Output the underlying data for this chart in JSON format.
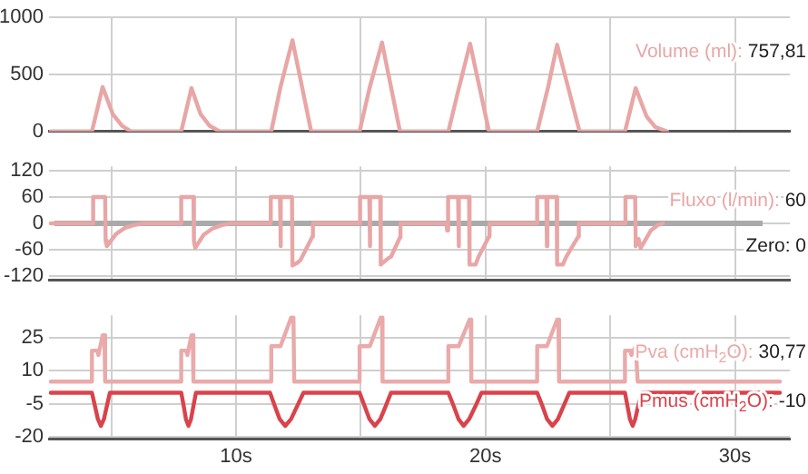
{
  "chart_data": [
    {
      "type": "line",
      "xlim": [
        2.5,
        32.2
      ],
      "xticks": [
        {
          "value": 5,
          "label": null
        },
        {
          "value": 10,
          "label": null
        },
        {
          "value": 15,
          "label": null
        },
        {
          "value": 20,
          "label": null
        },
        {
          "value": 25,
          "label": null
        },
        {
          "value": 30,
          "label": null
        }
      ],
      "ylim": [
        0,
        1000
      ],
      "yticks": [
        0,
        500,
        1000
      ],
      "grid": true,
      "tick_labels": "y",
      "legend": "right",
      "annotations": [
        " 757,81"
      ],
      "series": [
        {
          "name": "Volume (ml):",
          "color": "#e8a6a6",
          "x": [
            2.57,
            4.22,
            4.65,
            5.06,
            5.43,
            5.79,
            7.8,
            8.21,
            8.58,
            8.94,
            9.35,
            11.41,
            11.78,
            12.26,
            13.01,
            14.95,
            15.36,
            15.85,
            16.57,
            18.51,
            18.92,
            19.38,
            20.14,
            22.07,
            22.51,
            22.87,
            23.77,
            25.59,
            26.02,
            26.46,
            26.8,
            27.28
          ],
          "values": [
            0,
            0,
            390,
            150,
            50,
            0,
            0,
            380,
            150,
            50,
            0,
            0,
            390,
            800,
            0,
            0,
            390,
            780,
            0,
            0,
            370,
            770,
            0,
            0,
            390,
            760,
            0,
            0,
            380,
            130,
            40,
            0
          ]
        }
      ]
    },
    {
      "type": "line",
      "xlim": [
        2.5,
        32.2
      ],
      "xticks": [
        {
          "value": 5,
          "label": null
        },
        {
          "value": 10,
          "label": null
        },
        {
          "value": 15,
          "label": null
        },
        {
          "value": 20,
          "label": null
        },
        {
          "value": 25,
          "label": null
        },
        {
          "value": 30,
          "label": null
        }
      ],
      "ylim": [
        -130,
        130
      ],
      "yticks": [
        -120,
        -60,
        0,
        60,
        120
      ],
      "grid": true,
      "tick_labels": "y",
      "legend": "right",
      "annotations": [
        " 60"
      ],
      "ref_lines": [
        {
          "axis": "y",
          "value": 0,
          "label": "Zero: 0",
          "color": "#aaaaaa"
        }
      ],
      "series": [
        {
          "name": "Fluxo (l/min):",
          "color": "#e8a6a6",
          "x": [
            2.57,
            4.27,
            4.27,
            4.75,
            4.77,
            4.82,
            5.19,
            5.55,
            5.91,
            6.28,
            7.8,
            7.8,
            8.29,
            8.31,
            8.36,
            8.7,
            9.05,
            9.43,
            9.79,
            11.39,
            11.39,
            11.76,
            11.78,
            11.8,
            12.24,
            12.26,
            12.45,
            12.58,
            13.06,
            13.08,
            14.97,
            14.97,
            15.34,
            15.36,
            15.38,
            15.78,
            15.8,
            16.09,
            16.21,
            16.57,
            16.59,
            18.44,
            18.46,
            18.48,
            18.51,
            18.51,
            18.9,
            18.92,
            18.94,
            19.34,
            19.36,
            19.6,
            19.72,
            20.14,
            20.16,
            22.07,
            22.07,
            22.44,
            22.46,
            22.48,
            22.85,
            22.87,
            23.1,
            23.24,
            23.72,
            23.74,
            25.61,
            25.61,
            26,
            26.02,
            26.14,
            26.22,
            26.63,
            26.9,
            27.11
          ],
          "values": [
            0,
            0,
            60,
            60,
            -40,
            -52,
            -24,
            -10,
            -4,
            0,
            0,
            60,
            60,
            -40,
            -56,
            -26,
            -12,
            -4,
            0,
            0,
            60,
            60,
            -52,
            60,
            60,
            -96,
            -90,
            -84,
            -30,
            0,
            0,
            60,
            60,
            -52,
            60,
            60,
            -94,
            -80,
            -76,
            -32,
            0,
            0,
            -16,
            0,
            0,
            60,
            60,
            -52,
            60,
            60,
            -94,
            -94,
            -76,
            -30,
            0,
            0,
            60,
            60,
            -52,
            60,
            60,
            -94,
            -94,
            -76,
            -30,
            0,
            0,
            60,
            60,
            -52,
            -36,
            -56,
            -16,
            -4,
            0
          ]
        }
      ]
    },
    {
      "type": "line",
      "xlim": [
        2.5,
        32.2
      ],
      "xticks": [
        {
          "value": 5,
          "label": null
        },
        {
          "value": 10,
          "label": "10s"
        },
        {
          "value": 15,
          "label": null
        },
        {
          "value": 20,
          "label": "20s"
        },
        {
          "value": 25,
          "label": null
        },
        {
          "value": 30,
          "label": "30s"
        }
      ],
      "ylim": [
        -21,
        35
      ],
      "yticks": [
        -20,
        -5,
        10,
        25
      ],
      "grid": true,
      "legend": "right",
      "annotations": [
        " 30,77",
        " -10"
      ],
      "series": [
        {
          "name": "Pva (cmH$_{2}$O):",
          "color": "#eaaaaa",
          "x": [
            2.57,
            4.22,
            4.22,
            4.44,
            4.48,
            4.65,
            4.72,
            4.75,
            7.8,
            7.8,
            8,
            8.05,
            8.21,
            8.26,
            8.29,
            11.41,
            11.41,
            11.78,
            12.21,
            12.3,
            12.33,
            14.95,
            14.95,
            15.36,
            15.8,
            15.85,
            15.87,
            18.51,
            18.51,
            18.92,
            19.36,
            19.41,
            19.43,
            22.07,
            22.07,
            22.46,
            22.87,
            22.92,
            22.95,
            25.59,
            25.59,
            25.8,
            25.85,
            26.02,
            26.07,
            26.1,
            31.8
          ],
          "values": [
            5,
            5,
            19,
            19,
            17,
            26,
            26,
            5,
            5,
            19,
            19,
            17,
            26,
            26,
            5,
            5,
            21,
            21,
            34,
            34,
            5,
            5,
            21,
            21,
            34,
            34,
            5,
            5,
            21,
            21,
            33,
            33,
            5,
            5,
            21,
            21,
            33,
            33,
            5,
            5,
            19,
            19,
            17,
            21,
            21,
            5,
            5
          ]
        },
        {
          "name": "Pmus (cmH$_{2}$O):",
          "color": "#d9434b",
          "x": [
            2.57,
            4.22,
            4.34,
            4.46,
            4.58,
            4.7,
            4.82,
            4.94,
            7.8,
            7.9,
            7.99,
            8.09,
            8.19,
            8.29,
            8.39,
            11.36,
            11.55,
            11.75,
            11.97,
            12.2,
            12.45,
            12.7,
            14.95,
            15.15,
            15.35,
            15.56,
            15.78,
            16,
            16.21,
            18.51,
            18.72,
            18.92,
            19.12,
            19.34,
            19.6,
            19.84,
            22.07,
            22.28,
            22.47,
            22.68,
            22.9,
            23.13,
            23.36,
            25.59,
            25.69,
            25.79,
            25.9,
            26,
            26.12,
            26.27,
            31.8
          ],
          "values": [
            0,
            0,
            -6,
            -12,
            -15,
            -12,
            -6,
            0,
            0,
            -6,
            -12,
            -15,
            -12,
            -6,
            0,
            0,
            -6,
            -12,
            -15,
            -12,
            -6,
            0,
            0,
            -6,
            -12,
            -15,
            -12,
            -6,
            0,
            0,
            -6,
            -12,
            -15,
            -12,
            -6,
            0,
            0,
            -6,
            -12,
            -15,
            -12,
            -6,
            0,
            0,
            -6,
            -12,
            -15,
            -12,
            -6,
            0,
            0
          ]
        }
      ]
    }
  ]
}
